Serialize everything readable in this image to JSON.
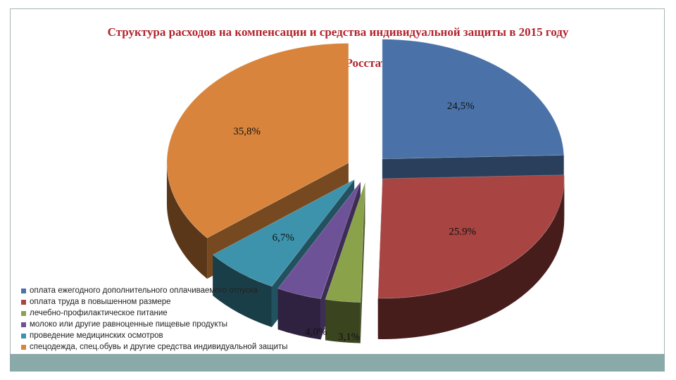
{
  "chart_data": {
    "type": "pie",
    "style": "3d-exploded",
    "title": "Структура расходов на компенсации и средства индивидуальной защиты в 2015 году",
    "subtitle": "(по данным Росстата)",
    "legend_position": "bottom-left",
    "slices": [
      {
        "name": "оплата ежегодного дополнительного оплачиваемого отпуска",
        "value": 24.5,
        "label": "24,5%",
        "color": "#4a72a8"
      },
      {
        "name": "оплата труда в повышенном размере",
        "value": 25.9,
        "label": "25.9%",
        "color": "#a84442"
      },
      {
        "name": "лечебно-профилактическое питание",
        "value": 3.1,
        "label": "3,1%",
        "color": "#8aa34a"
      },
      {
        "name": "молоко или другие равноценные пищевые продукты",
        "value": 4.0,
        "label": "4,0%",
        "color": "#6e5298"
      },
      {
        "name": "проведение медицинских осмотров",
        "value": 6.7,
        "label": "6,7%",
        "color": "#3d93ac"
      },
      {
        "name": "спецодежда, спец.обувь и другие средства индивидуальной защиты",
        "value": 35.8,
        "label": "35,8%",
        "color": "#d9843c"
      }
    ]
  }
}
